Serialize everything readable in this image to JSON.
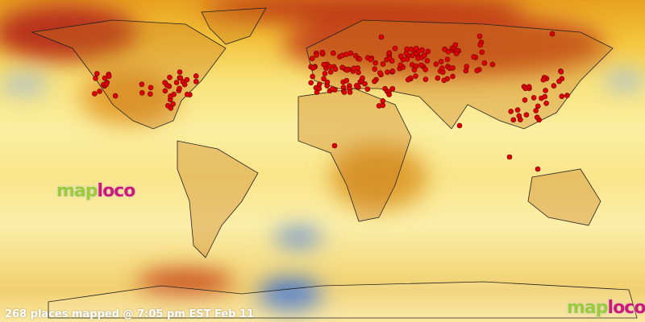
{
  "map": {
    "type": "world temperature anomaly map with place markers",
    "colors": {
      "hot": "#c0301a",
      "warm": "#e8a020",
      "neutral": "#fbeea0",
      "cool": "#3a6fc0",
      "marker": "#e00000",
      "land_border": "#222222"
    },
    "marker_icon": "red-dot"
  },
  "status": {
    "caption": "268 places mapped @ 7:05 pm EST Feb 11"
  },
  "logo": {
    "part1": "map",
    "part2": "loco"
  }
}
